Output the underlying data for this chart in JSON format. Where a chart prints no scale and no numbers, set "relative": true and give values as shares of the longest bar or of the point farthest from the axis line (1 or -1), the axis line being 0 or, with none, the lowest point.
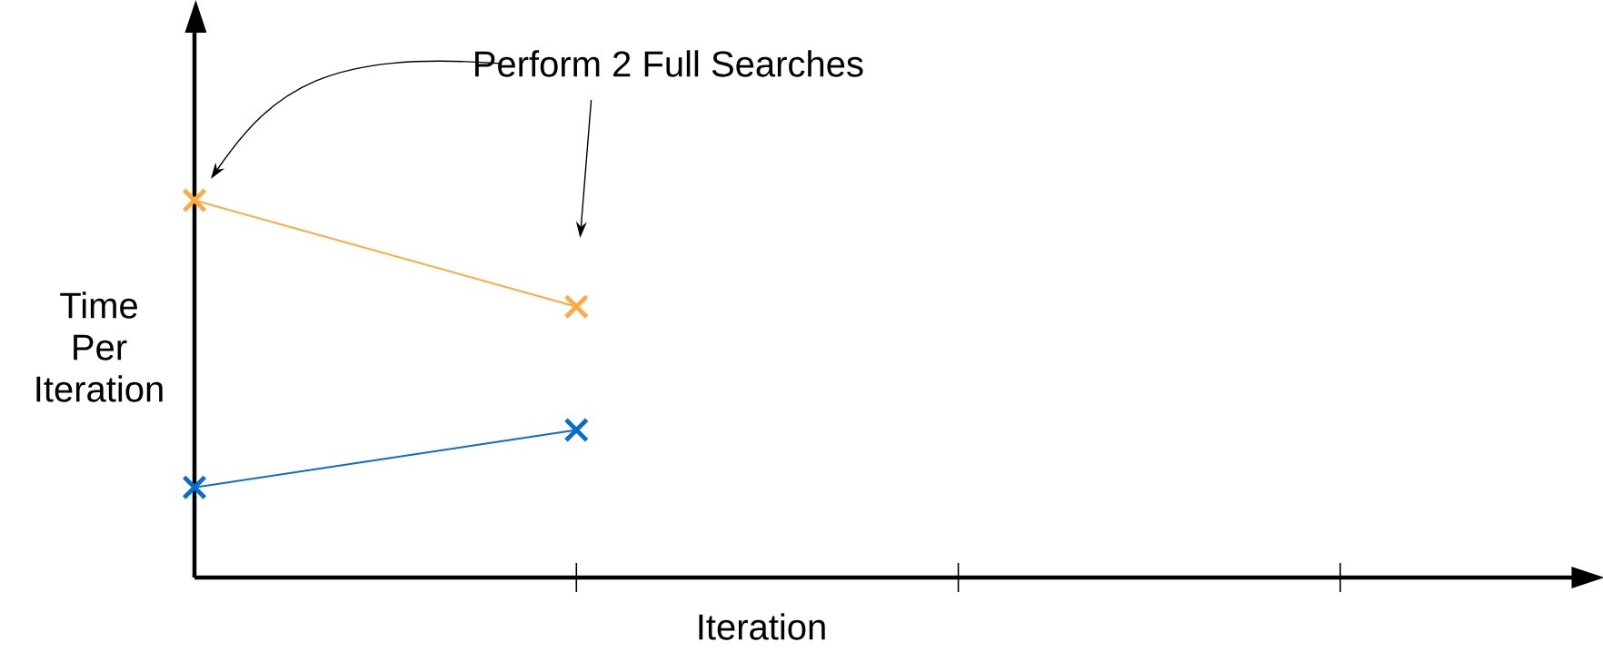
{
  "chart_data": {
    "type": "line",
    "relative": true,
    "xlabel": "Iteration",
    "ylabel": "Time Per Iteration",
    "annotations": [
      "Perform 2 Full Searches"
    ],
    "categories": [
      null,
      null,
      null,
      null
    ],
    "series": [
      {
        "color": "#ffa940",
        "values": [
          1,
          0.718,
          null,
          null
        ]
      },
      {
        "color": "#0a6ccc",
        "values": [
          0.239,
          0.391,
          null,
          null
        ]
      }
    ],
    "marker": "cross",
    "line_style": "solid",
    "grid": false
  }
}
